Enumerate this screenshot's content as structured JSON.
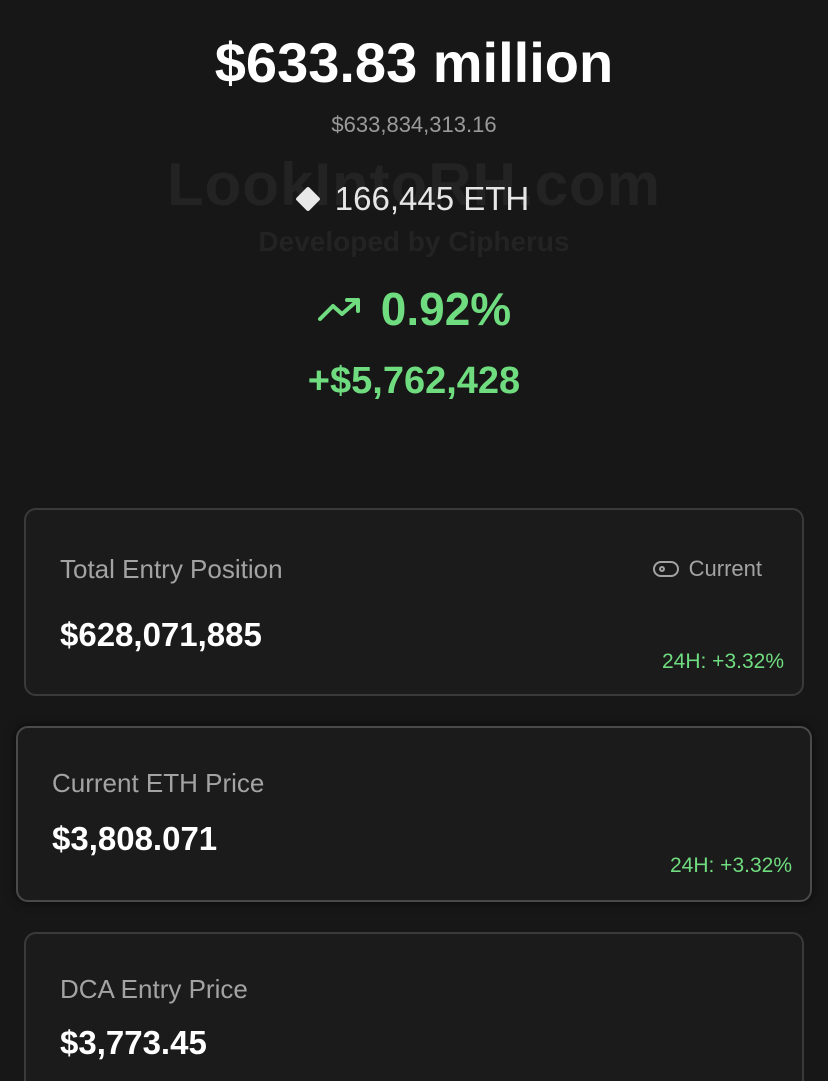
{
  "watermark": {
    "site": "LookIntoRH.com",
    "developer": "Developed by Cipherus"
  },
  "summary": {
    "headline_value": "$633.83 million",
    "exact_value": "$633,834,313.16",
    "eth_amount": "166,445 ETH",
    "change_percent": "0.92%",
    "change_value": "+$5,762,428"
  },
  "icons": {
    "eth": "diamond-icon",
    "trend": "trending-up-icon",
    "toggle": "toggle-icon"
  },
  "cards": {
    "total_entry": {
      "label": "Total Entry Position",
      "value": "$628,071,885",
      "toggle_label": "Current",
      "change": "24H: +3.32%"
    },
    "eth_price": {
      "label": "Current ETH Price",
      "value": "$3,808.071",
      "change": "24H: +3.32%"
    },
    "dca_entry": {
      "label": "DCA Entry Price",
      "value": "$3,773.45"
    }
  },
  "colors": {
    "background": "#171717",
    "positive": "#6fdc7f",
    "card_border": "#3a3a3a",
    "muted_text": "#a3a3a3"
  }
}
